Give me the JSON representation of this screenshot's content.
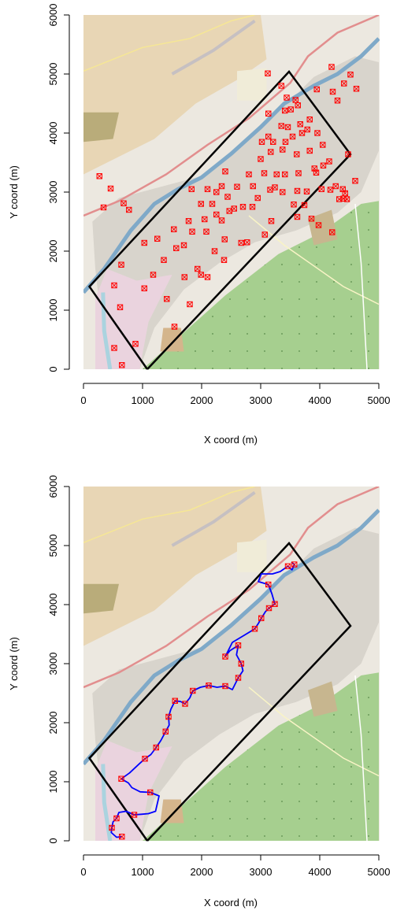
{
  "colors": {
    "map_base": "#ece8e0",
    "map_farmland": "#e8d6b5",
    "map_forest": "#a6cf8f",
    "map_urban": "#d8d4cc",
    "map_industrial": "#ead3de",
    "map_water": "#aad3df",
    "road_major": "#e28e8e",
    "road_minor": "#f6e795",
    "study_area": "#000000",
    "point_marker": "#ff0000",
    "route_line": "#0000ff"
  },
  "chart_data": [
    {
      "type": "scatter",
      "title": "",
      "xlabel": "X coord (m)",
      "ylabel": "Y coord (m)",
      "xlim": [
        0,
        5000
      ],
      "ylim": [
        0,
        6000
      ],
      "xticks": [
        "0",
        "1000",
        "2000",
        "3000",
        "4000",
        "5000"
      ],
      "yticks": [
        "0",
        "1000",
        "2000",
        "3000",
        "4000",
        "5000",
        "6000"
      ],
      "background": "street map",
      "study_area_polygon": [
        [
          1080,
          0
        ],
        [
          4520,
          3640
        ],
        [
          3480,
          5040
        ],
        [
          100,
          1400
        ],
        [
          1080,
          0
        ]
      ],
      "series": [
        {
          "marker": "crossed-square",
          "points": [
            [
              650,
              70
            ],
            [
              520,
              360
            ],
            [
              880,
              430
            ],
            [
              1540,
              720
            ],
            [
              620,
              1050
            ],
            [
              1800,
              1100
            ],
            [
              1410,
              1190
            ],
            [
              520,
              1420
            ],
            [
              1030,
              1370
            ],
            [
              1710,
              1560
            ],
            [
              640,
              1770
            ],
            [
              1180,
              1600
            ],
            [
              1990,
              1600
            ],
            [
              1360,
              1850
            ],
            [
              1930,
              1700
            ],
            [
              2100,
              1560
            ],
            [
              1570,
              2050
            ],
            [
              1700,
              2100
            ],
            [
              1030,
              2140
            ],
            [
              1250,
              2210
            ],
            [
              2220,
              2000
            ],
            [
              2380,
              1850
            ],
            [
              2670,
              2140
            ],
            [
              1530,
              2370
            ],
            [
              1840,
              2330
            ],
            [
              2080,
              2330
            ],
            [
              2390,
              2200
            ],
            [
              1780,
              2510
            ],
            [
              2050,
              2540
            ],
            [
              2340,
              2520
            ],
            [
              2550,
              2720
            ],
            [
              2250,
              2620
            ],
            [
              2470,
              2680
            ],
            [
              2700,
              2750
            ],
            [
              2860,
              2750
            ],
            [
              1990,
              2800
            ],
            [
              2180,
              2800
            ],
            [
              2440,
              2920
            ],
            [
              1830,
              3050
            ],
            [
              2100,
              3050
            ],
            [
              2250,
              3000
            ],
            [
              2340,
              3100
            ],
            [
              2600,
              3090
            ],
            [
              2870,
              3100
            ],
            [
              2950,
              2900
            ],
            [
              3160,
              3040
            ],
            [
              3370,
              3000
            ],
            [
              3620,
              3020
            ],
            [
              3780,
              3010
            ],
            [
              3240,
              3080
            ],
            [
              2400,
              3350
            ],
            [
              2800,
              3300
            ],
            [
              3060,
              3320
            ],
            [
              3270,
              3300
            ],
            [
              3410,
              3300
            ],
            [
              3640,
              3320
            ],
            [
              3940,
              3330
            ],
            [
              4060,
              3450
            ],
            [
              4160,
              3520
            ],
            [
              3910,
              3400
            ],
            [
              3000,
              3560
            ],
            [
              3170,
              3680
            ],
            [
              3370,
              3720
            ],
            [
              3610,
              3640
            ],
            [
              3830,
              3700
            ],
            [
              4050,
              3800
            ],
            [
              3130,
              3940
            ],
            [
              3020,
              3850
            ],
            [
              3210,
              3850
            ],
            [
              3420,
              3850
            ],
            [
              3540,
              3940
            ],
            [
              3700,
              4000
            ],
            [
              3960,
              4000
            ],
            [
              3350,
              4120
            ],
            [
              3460,
              4100
            ],
            [
              3670,
              4150
            ],
            [
              3790,
              4060
            ],
            [
              3830,
              4230
            ],
            [
              3130,
              4330
            ],
            [
              3410,
              4380
            ],
            [
              3510,
              4400
            ],
            [
              3630,
              4470
            ],
            [
              3440,
              4600
            ],
            [
              3590,
              4560
            ],
            [
              3950,
              4740
            ],
            [
              4220,
              4700
            ],
            [
              4300,
              4550
            ],
            [
              4410,
              4840
            ],
            [
              4620,
              4750
            ],
            [
              4520,
              4990
            ],
            [
              3350,
              4800
            ],
            [
              3120,
              5010
            ],
            [
              4200,
              5120
            ],
            [
              3740,
              2780
            ],
            [
              3560,
              2790
            ],
            [
              4330,
              2880
            ],
            [
              4400,
              2890
            ],
            [
              4460,
              2880
            ],
            [
              4430,
              2980
            ],
            [
              4270,
              3100
            ],
            [
              4390,
              3050
            ],
            [
              4600,
              3190
            ],
            [
              4480,
              3640
            ],
            [
              4180,
              3040
            ],
            [
              4210,
              2320
            ],
            [
              3860,
              2550
            ],
            [
              3620,
              2580
            ],
            [
              3980,
              2440
            ],
            [
              3180,
              2510
            ],
            [
              4030,
              3050
            ],
            [
              340,
              2740
            ],
            [
              270,
              3270
            ],
            [
              680,
              2810
            ],
            [
              770,
              2700
            ],
            [
              460,
              3060
            ],
            [
              2770,
              2150
            ],
            [
              3070,
              2280
            ]
          ]
        }
      ]
    },
    {
      "type": "line",
      "title": "",
      "xlabel": "X coord (m)",
      "ylabel": "Y coord (m)",
      "xlim": [
        0,
        5000
      ],
      "ylim": [
        0,
        6000
      ],
      "xticks": [
        "0",
        "1000",
        "2000",
        "3000",
        "4000",
        "5000"
      ],
      "yticks": [
        "0",
        "1000",
        "2000",
        "3000",
        "4000",
        "5000",
        "6000"
      ],
      "background": "street map",
      "study_area_polygon": [
        [
          1080,
          0
        ],
        [
          4520,
          3640
        ],
        [
          3480,
          5040
        ],
        [
          100,
          1400
        ],
        [
          1080,
          0
        ]
      ],
      "series": [
        {
          "marker": "crossed-square",
          "points": [
            [
              650,
              70
            ],
            [
              480,
              220
            ],
            [
              560,
              380
            ],
            [
              860,
              440
            ],
            [
              1130,
              820
            ],
            [
              640,
              1050
            ],
            [
              1040,
              1390
            ],
            [
              1230,
              1580
            ],
            [
              1390,
              1850
            ],
            [
              1440,
              2100
            ],
            [
              1550,
              2370
            ],
            [
              1720,
              2320
            ],
            [
              1850,
              2540
            ],
            [
              2120,
              2630
            ],
            [
              2400,
              2620
            ],
            [
              2620,
              2760
            ],
            [
              2670,
              3000
            ],
            [
              2620,
              3310
            ],
            [
              2400,
              3120
            ],
            [
              2900,
              3590
            ],
            [
              3010,
              3770
            ],
            [
              3140,
              3940
            ],
            [
              3240,
              4010
            ],
            [
              3130,
              4340
            ],
            [
              3460,
              4650
            ],
            [
              3570,
              4680
            ]
          ]
        }
      ],
      "route": [
        [
          650,
          70
        ],
        [
          560,
          60
        ],
        [
          470,
          140
        ],
        [
          480,
          220
        ],
        [
          500,
          320
        ],
        [
          560,
          380
        ],
        [
          600,
          480
        ],
        [
          720,
          500
        ],
        [
          860,
          440
        ],
        [
          980,
          450
        ],
        [
          1100,
          460
        ],
        [
          1220,
          500
        ],
        [
          1280,
          760
        ],
        [
          1130,
          820
        ],
        [
          960,
          830
        ],
        [
          820,
          900
        ],
        [
          760,
          980
        ],
        [
          640,
          1050
        ],
        [
          780,
          1150
        ],
        [
          950,
          1310
        ],
        [
          1040,
          1390
        ],
        [
          1140,
          1460
        ],
        [
          1230,
          1580
        ],
        [
          1310,
          1700
        ],
        [
          1390,
          1850
        ],
        [
          1450,
          1960
        ],
        [
          1440,
          2100
        ],
        [
          1480,
          2230
        ],
        [
          1550,
          2370
        ],
        [
          1640,
          2360
        ],
        [
          1720,
          2320
        ],
        [
          1800,
          2420
        ],
        [
          1850,
          2540
        ],
        [
          1980,
          2600
        ],
        [
          2120,
          2630
        ],
        [
          2260,
          2600
        ],
        [
          2400,
          2620
        ],
        [
          2520,
          2560
        ],
        [
          2620,
          2760
        ],
        [
          2700,
          2880
        ],
        [
          2670,
          3000
        ],
        [
          2590,
          3150
        ],
        [
          2620,
          3310
        ],
        [
          2480,
          3220
        ],
        [
          2400,
          3120
        ],
        [
          2520,
          3360
        ],
        [
          2720,
          3480
        ],
        [
          2900,
          3590
        ],
        [
          2960,
          3680
        ],
        [
          3010,
          3770
        ],
        [
          3080,
          3880
        ],
        [
          3140,
          3940
        ],
        [
          3240,
          4010
        ],
        [
          3190,
          4180
        ],
        [
          3130,
          4340
        ],
        [
          2960,
          4390
        ],
        [
          3010,
          4520
        ],
        [
          3200,
          4520
        ],
        [
          3330,
          4560
        ],
        [
          3460,
          4650
        ],
        [
          3530,
          4590
        ],
        [
          3570,
          4680
        ],
        [
          3520,
          4720
        ]
      ]
    }
  ]
}
